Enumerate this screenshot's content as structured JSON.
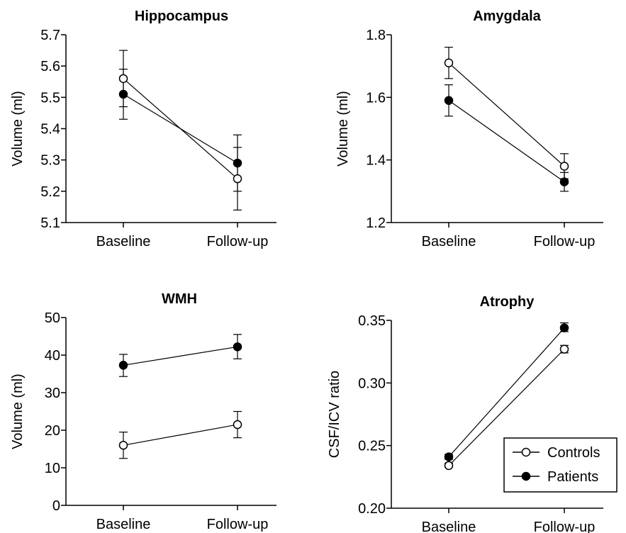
{
  "legend": {
    "items": [
      {
        "label": "Controls",
        "marker": "open-circle"
      },
      {
        "label": "Patients",
        "marker": "filled-circle"
      }
    ]
  },
  "colors": {
    "line": "#000000",
    "background": "#ffffff",
    "open_marker_fill": "#ffffff",
    "filled_marker_fill": "#000000"
  },
  "chart_data": [
    {
      "type": "line",
      "title": "Hippocampus",
      "xlabel": "",
      "ylabel": "Volume (ml)",
      "categories": [
        "Baseline",
        "Follow-up"
      ],
      "ylim": [
        5.1,
        5.7
      ],
      "yticks": [
        5.1,
        5.2,
        5.3,
        5.4,
        5.5,
        5.6,
        5.7
      ],
      "ytick_labels": [
        "5.1",
        "5.2",
        "5.3",
        "5.4",
        "5.5",
        "5.6",
        "5.7"
      ],
      "series": [
        {
          "name": "Controls",
          "values": [
            5.56,
            5.24
          ],
          "err_low": [
            5.47,
            5.14
          ],
          "err_high": [
            5.65,
            5.34
          ]
        },
        {
          "name": "Patients",
          "values": [
            5.51,
            5.29
          ],
          "err_low": [
            5.43,
            5.2
          ],
          "err_high": [
            5.59,
            5.38
          ]
        }
      ]
    },
    {
      "type": "line",
      "title": "Amygdala",
      "xlabel": "",
      "ylabel": "Volume (ml)",
      "categories": [
        "Baseline",
        "Follow-up"
      ],
      "ylim": [
        1.2,
        1.8
      ],
      "yticks": [
        1.2,
        1.4,
        1.6,
        1.8
      ],
      "ytick_labels": [
        "1.2",
        "1.4",
        "1.6",
        "1.8"
      ],
      "series": [
        {
          "name": "Controls",
          "values": [
            1.71,
            1.38
          ],
          "err_low": [
            1.66,
            1.34
          ],
          "err_high": [
            1.76,
            1.42
          ]
        },
        {
          "name": "Patients",
          "values": [
            1.59,
            1.33
          ],
          "err_low": [
            1.54,
            1.3
          ],
          "err_high": [
            1.64,
            1.36
          ]
        }
      ]
    },
    {
      "type": "line",
      "title": "WMH",
      "xlabel": "",
      "ylabel": "Volume (ml)",
      "categories": [
        "Baseline",
        "Follow-up"
      ],
      "ylim": [
        0,
        50
      ],
      "yticks": [
        0,
        10,
        20,
        30,
        40,
        50
      ],
      "ytick_labels": [
        "0",
        "10",
        "20",
        "30",
        "40",
        "50"
      ],
      "series": [
        {
          "name": "Controls",
          "values": [
            16,
            21.5
          ],
          "err_low": [
            12.5,
            18
          ],
          "err_high": [
            19.5,
            25
          ]
        },
        {
          "name": "Patients",
          "values": [
            37.3,
            42.2
          ],
          "err_low": [
            34.3,
            39
          ],
          "err_high": [
            40.2,
            45.5
          ]
        }
      ]
    },
    {
      "type": "line",
      "title": "Atrophy",
      "xlabel": "",
      "ylabel": "CSF/ICV ratio",
      "categories": [
        "Baseline",
        "Follow-up"
      ],
      "ylim": [
        0.2,
        0.35
      ],
      "yticks": [
        0.2,
        0.25,
        0.3,
        0.35
      ],
      "ytick_labels": [
        "0.20",
        "0.25",
        "0.30",
        "0.35"
      ],
      "series": [
        {
          "name": "Controls",
          "values": [
            0.234,
            0.327
          ],
          "err_low": [
            0.233,
            0.324
          ],
          "err_high": [
            0.236,
            0.33
          ]
        },
        {
          "name": "Patients",
          "values": [
            0.241,
            0.344
          ],
          "err_low": [
            0.239,
            0.341
          ],
          "err_high": [
            0.243,
            0.348
          ]
        }
      ]
    }
  ]
}
